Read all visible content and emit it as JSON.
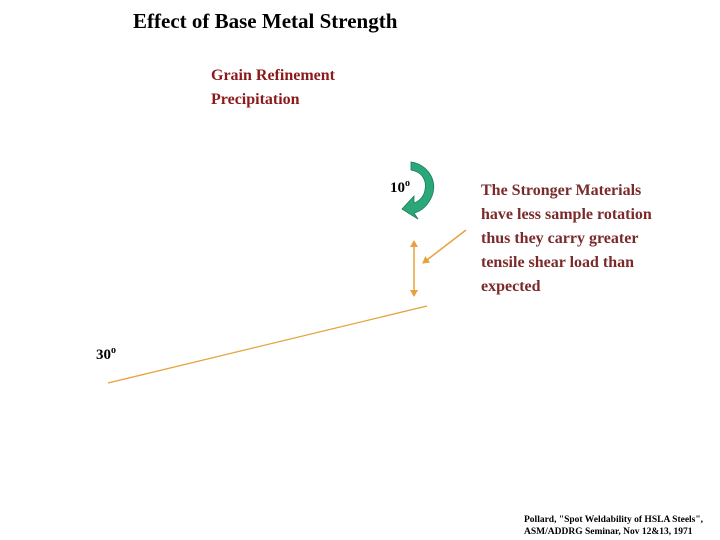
{
  "title": "Effect of Base Metal Strength",
  "subtitle": {
    "line1": "Grain Refinement",
    "line2": "Precipitation"
  },
  "angles": {
    "small_value": "10",
    "large_value": "30",
    "degree_mark": "o"
  },
  "note": {
    "lines": [
      "The Stronger Materials",
      "have less sample rotation",
      "thus they carry greater",
      "tensile shear load than",
      "expected"
    ]
  },
  "citation": {
    "line1": "Pollard, \"Spot Weldability of HSLA Steels\",",
    "line2": "ASM/ADDRG Seminar, Nov 12&13, 1971"
  },
  "colors": {
    "title": "#000000",
    "subtitle": "#8b1a1a",
    "note": "#7a2a2a",
    "lines": "#e6a23c",
    "rotation_arrow": "#2aa87a"
  }
}
